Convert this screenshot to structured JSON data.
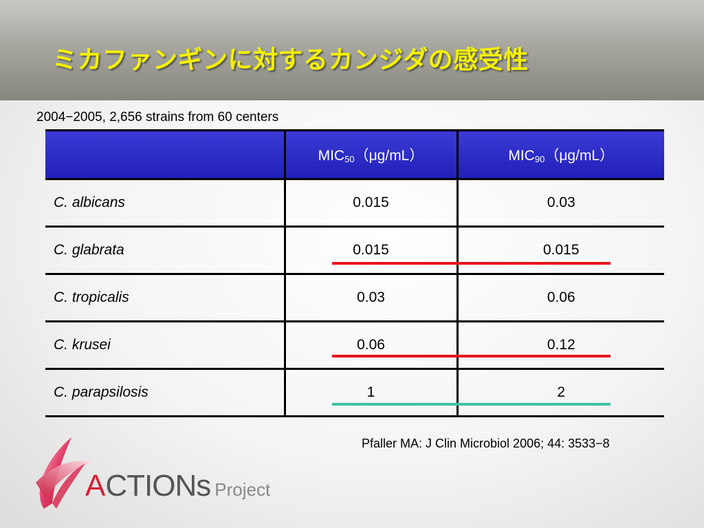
{
  "header": {
    "title": "ミカファンギンに対するカンジダの感受性"
  },
  "subtitle": "2004−2005, 2,656 strains from 60 centers",
  "table": {
    "headers": [
      {
        "prefix": "",
        "sub": "",
        "suffix": ""
      },
      {
        "prefix": "MIC",
        "sub": "50",
        "suffix": "（μg/mL）"
      },
      {
        "prefix": "MIC",
        "sub": "90",
        "suffix": "（μg/mL）"
      }
    ],
    "rows": [
      {
        "species": "C. albicans",
        "mic50": "0.015",
        "mic90": "0.03"
      },
      {
        "species": "C. glabrata",
        "mic50": "0.015",
        "mic90": "0.015"
      },
      {
        "species": "C. tropicalis",
        "mic50": "0.03",
        "mic90": "0.06"
      },
      {
        "species": "C. krusei",
        "mic50": "0.06",
        "mic90": "0.12"
      },
      {
        "species": "C. parapsilosis",
        "mic50": "1",
        "mic90": "2"
      }
    ]
  },
  "highlights": {
    "red": "#e8141e",
    "teal": "#3fc2a0"
  },
  "citation": "Pfaller MA: J Clin Microbiol 2006; 44: 3533−8",
  "logo": {
    "brand_first": "A",
    "brand_rest": "CTIONs",
    "project": "Project"
  }
}
